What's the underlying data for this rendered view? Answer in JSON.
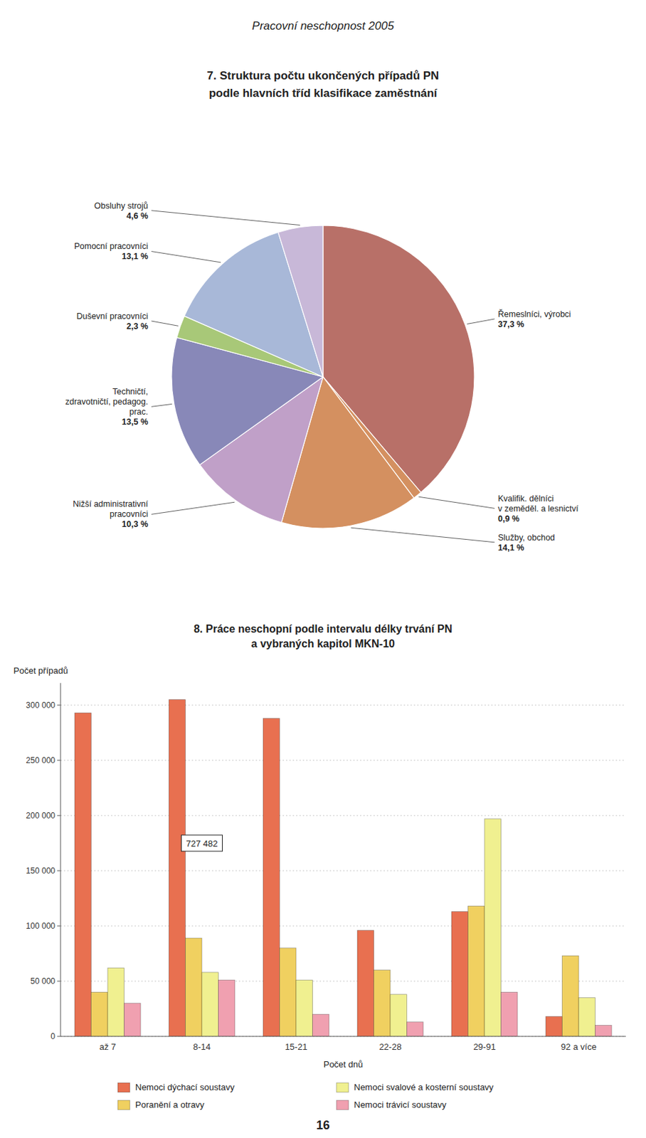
{
  "page_header": "Pracovní neschopnost 2005",
  "page_number": "16",
  "chart_data": [
    {
      "type": "pie",
      "title": "7. Struktura počtu ukončených případů PN",
      "subtitle": "podle hlavních tříd klasifikace zaměstnání",
      "categories": [
        "Řemeslníci, výrobci",
        "Kvalifik. dělníci\nv zeměděl. a lesnictví",
        "Služby, obchod",
        "Nižší administrativní\npracovníci",
        "Techničtí,\nzdravotničtí, pedagog.\nprac.",
        "Duševní pracovníci",
        "Pomocní pracovníci",
        "Obsluhy strojů"
      ],
      "values": [
        37.3,
        0.9,
        14.1,
        10.3,
        13.5,
        2.3,
        13.1,
        4.6
      ],
      "value_labels": [
        "37,3 %",
        "0,9 %",
        "14,1 %",
        "10,3 %",
        "13,5 %",
        "2,3 %",
        "13,1 %",
        "4,6 %"
      ],
      "colors": [
        "#B87068",
        "#D49060",
        "#D49060",
        "#C0A0C8",
        "#8888B8",
        "#A8C878",
        "#A8B8D8",
        "#C8B8D8"
      ],
      "data_labels": true
    },
    {
      "type": "bar",
      "title": "8. Práce neschopní podle intervalu délky trvání PN",
      "subtitle": "a vybraných kapitol MKN-10",
      "categories": [
        "až 7",
        "8-14",
        "15-21",
        "22-28",
        "29-91",
        "92 a více"
      ],
      "xlabel": "Počet dnů",
      "ylabel": "Počet případů",
      "series": [
        {
          "name": "Nemoci dýchací soustavy",
          "color": "#E87050",
          "values": [
            293000,
            305000,
            288000,
            96000,
            113000,
            18000
          ]
        },
        {
          "name": "Poranění a otravy",
          "color": "#F0D060",
          "values": [
            40000,
            89000,
            80000,
            60000,
            118000,
            73000
          ]
        },
        {
          "name": "Nemoci svalové a kosterní soustavy",
          "color": "#F0F090",
          "values": [
            62000,
            58000,
            51000,
            38000,
            197000,
            35000
          ]
        },
        {
          "name": "Nemoci trávicí soustavy",
          "color": "#F0A0B0",
          "values": [
            30000,
            51000,
            20000,
            13000,
            40000,
            10000
          ]
        }
      ],
      "ylim": [
        0,
        320000
      ],
      "yticks": [
        0,
        {
          "value": 50000,
          "label": "50 000"
        },
        {
          "value": 100000,
          "label": "100 000"
        },
        {
          "value": 150000,
          "label": "150 000"
        },
        {
          "value": 200000,
          "label": "200 000"
        },
        {
          "value": 250000,
          "label": "250 000"
        },
        {
          "value": 300000,
          "label": "300 000"
        }
      ],
      "grid": true,
      "legend": "bottom",
      "annotations": [
        {
          "text": "727 482",
          "x": "8-14",
          "y": 175000
        }
      ]
    }
  ]
}
